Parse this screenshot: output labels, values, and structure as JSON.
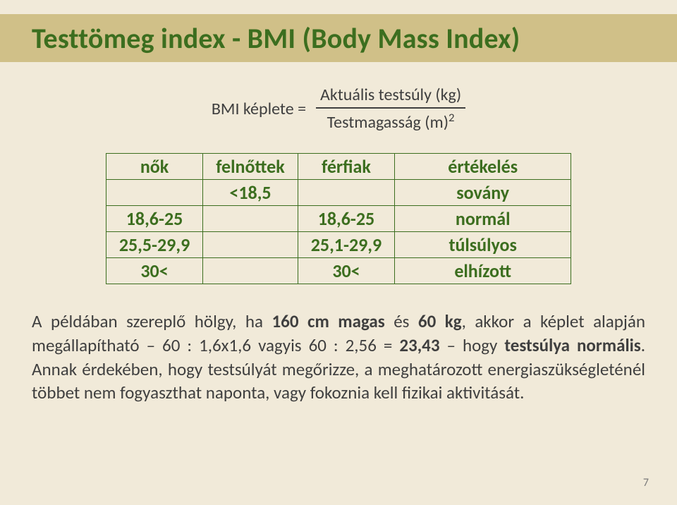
{
  "colors": {
    "background": "#f1ead9",
    "title_stripe": "#d0c088",
    "title_text": "#3c6e1f",
    "body_text": "#3f3f3f",
    "table_border": "#3c6e1f",
    "table_text": "#3c6e1f",
    "pagenum": "#7a7a7a"
  },
  "title": "Testtömeg index - BMI (Body Mass Index)",
  "formula": {
    "label": "BMI képlete =",
    "numerator": "Aktuális testsúly (kg)",
    "denominator_base": "Testmagasság (m)",
    "denominator_exp": "2"
  },
  "table": {
    "headers": {
      "nok": "nők",
      "felnottek": "felnőttek",
      "ferfiak": "férfiak",
      "ertekeles": "értékelés"
    },
    "rows": [
      {
        "nok": "",
        "felnottek": "<18,5",
        "ferfiak": "",
        "ertekeles": "sovány"
      },
      {
        "nok": "18,6-25",
        "felnottek": "",
        "ferfiak": "18,6-25",
        "ertekeles": "normál"
      },
      {
        "nok": "25,5-29,9",
        "felnottek": "",
        "ferfiak": "25,1-29,9",
        "ertekeles": "túlsúlyos"
      },
      {
        "nok": "30<",
        "felnottek": "",
        "ferfiak": "30<",
        "ertekeles": "elhízott"
      }
    ]
  },
  "paragraph": {
    "p1a": "A példában szereplő hölgy, ha ",
    "p1b": "160 cm magas",
    "p1c": " és ",
    "p1d": "60 kg",
    "p1e": ", akkor a képlet alapján megállapítható – 60 : 1,6x1,6 vagyis 60 : 2,56 = ",
    "p1f": "23,43",
    "p1g": " – hogy ",
    "p1h": "testsúlya normális",
    "p1i": ". Annak érdekében, hogy testsúlyát megőrizze, a meghatározott energiaszükségleténél többet nem fogyaszthat naponta, vagy fokoznia kell fizikai aktivitását."
  },
  "page_number": "7"
}
